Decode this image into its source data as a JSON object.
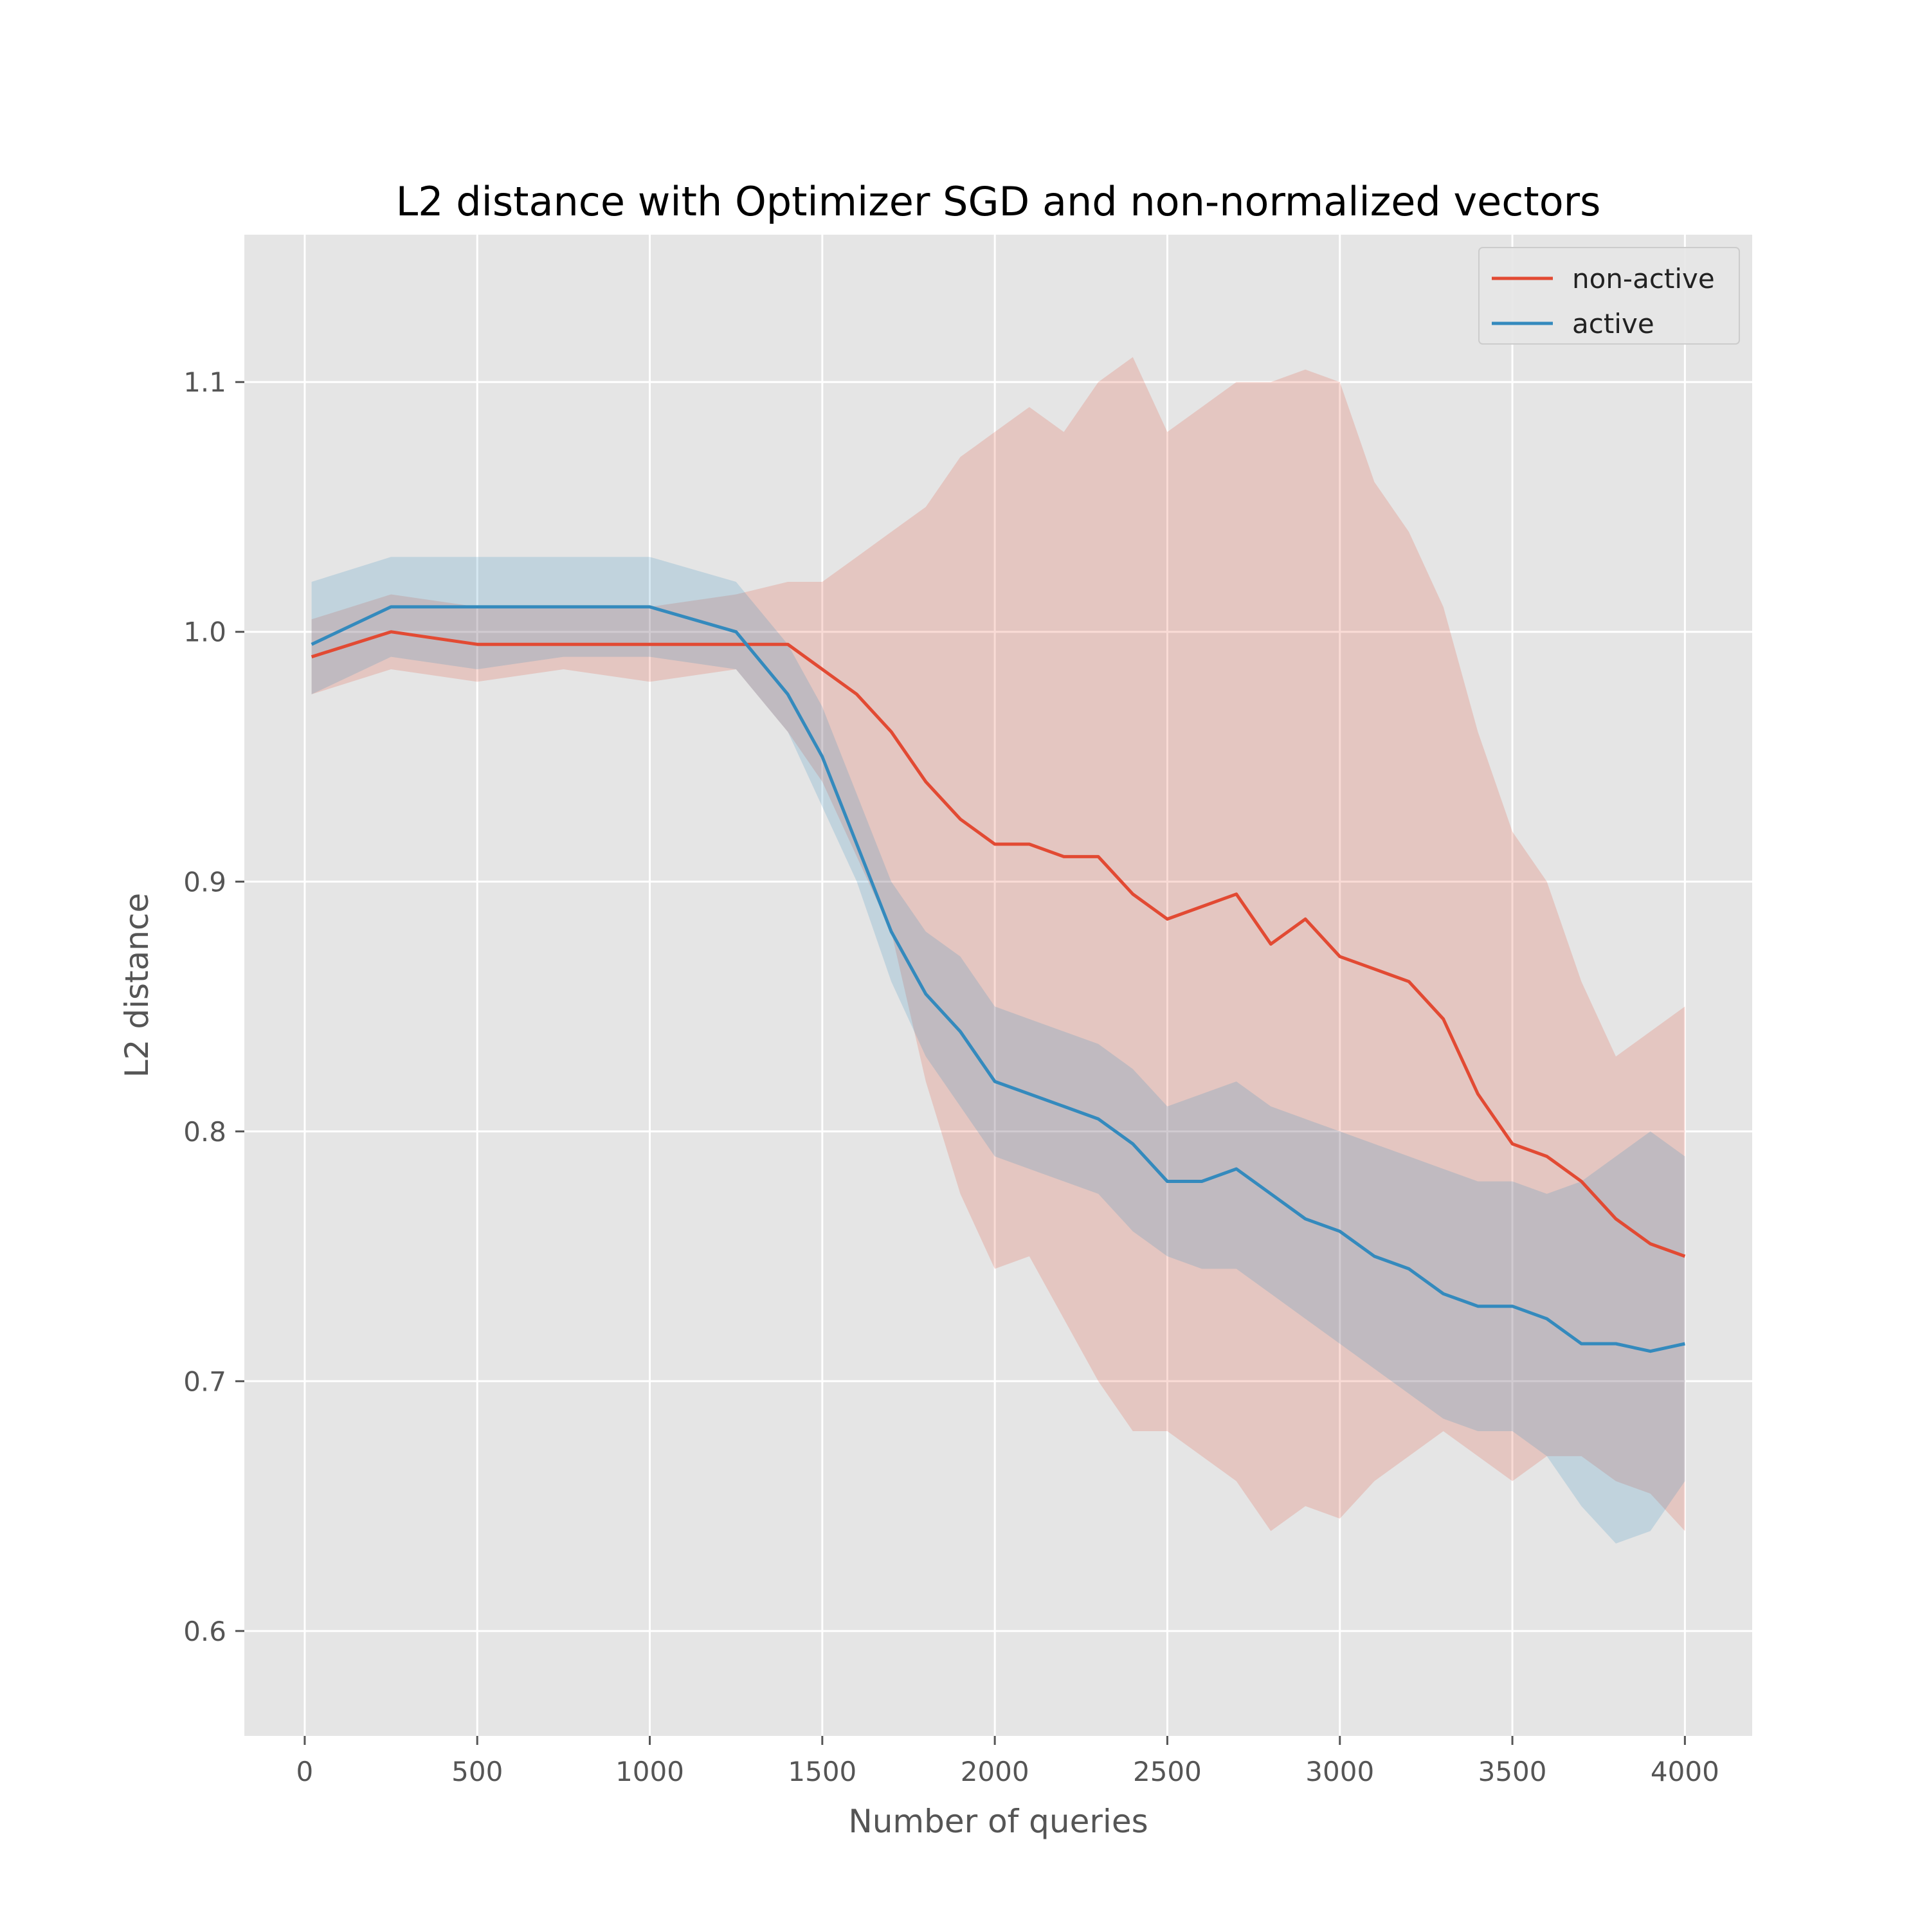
{
  "chart_data": {
    "type": "line",
    "title": "L2 distance with Optimizer SGD and non-normalized vectors",
    "xlabel": "Number of queries",
    "ylabel": "L2 distance",
    "xlim": [
      -175,
      4195
    ],
    "ylim": [
      0.558,
      1.159
    ],
    "xticks": [
      0,
      500,
      1000,
      1500,
      2000,
      2500,
      3000,
      3500,
      4000
    ],
    "xtick_labels": [
      "0",
      "500",
      "1000",
      "1500",
      "2000",
      "2500",
      "3000",
      "3500",
      "4000"
    ],
    "yticks": [
      0.6,
      0.7,
      0.8,
      0.9,
      1.0,
      1.1
    ],
    "ytick_labels": [
      "0.6",
      "0.7",
      "0.8",
      "0.9",
      "1.0",
      "1.1"
    ],
    "grid": true,
    "legend": {
      "placement": "top-right",
      "entries": [
        "non-active",
        "active"
      ]
    },
    "colors": {
      "background": "#e5e5e5",
      "grid": "#ffffff",
      "non_active": "#e24a33",
      "active": "#348abd"
    },
    "series": [
      {
        "name": "non-active",
        "color": "#e24a33",
        "x": [
          20,
          250,
          500,
          750,
          1000,
          1250,
          1400,
          1500,
          1600,
          1700,
          1800,
          1900,
          2000,
          2100,
          2200,
          2300,
          2400,
          2500,
          2600,
          2700,
          2800,
          2900,
          3000,
          3100,
          3200,
          3300,
          3400,
          3500,
          3600,
          3700,
          3800,
          3900,
          4000
        ],
        "y": [
          0.99,
          1.0,
          0.995,
          0.995,
          0.995,
          0.995,
          0.995,
          0.985,
          0.975,
          0.96,
          0.94,
          0.925,
          0.915,
          0.915,
          0.91,
          0.91,
          0.895,
          0.885,
          0.89,
          0.895,
          0.875,
          0.885,
          0.87,
          0.865,
          0.86,
          0.845,
          0.815,
          0.795,
          0.79,
          0.78,
          0.765,
          0.755,
          0.75
        ],
        "lower": [
          0.975,
          0.985,
          0.98,
          0.985,
          0.98,
          0.985,
          0.96,
          0.94,
          0.91,
          0.88,
          0.82,
          0.775,
          0.745,
          0.75,
          0.725,
          0.7,
          0.68,
          0.68,
          0.67,
          0.66,
          0.64,
          0.65,
          0.645,
          0.66,
          0.67,
          0.68,
          0.67,
          0.66,
          0.67,
          0.67,
          0.66,
          0.655,
          0.64
        ],
        "upper": [
          1.005,
          1.015,
          1.01,
          1.01,
          1.01,
          1.015,
          1.02,
          1.02,
          1.03,
          1.04,
          1.05,
          1.07,
          1.08,
          1.09,
          1.08,
          1.1,
          1.11,
          1.08,
          1.09,
          1.1,
          1.1,
          1.105,
          1.1,
          1.06,
          1.04,
          1.01,
          0.96,
          0.92,
          0.9,
          0.86,
          0.83,
          0.84,
          0.85
        ]
      },
      {
        "name": "active",
        "color": "#348abd",
        "x": [
          20,
          250,
          500,
          750,
          1000,
          1250,
          1400,
          1500,
          1600,
          1700,
          1800,
          1900,
          2000,
          2100,
          2200,
          2300,
          2400,
          2500,
          2600,
          2700,
          2800,
          2900,
          3000,
          3100,
          3200,
          3300,
          3400,
          3500,
          3600,
          3700,
          3800,
          3900,
          4000
        ],
        "y": [
          0.995,
          1.01,
          1.01,
          1.01,
          1.01,
          1.0,
          0.975,
          0.95,
          0.915,
          0.88,
          0.855,
          0.84,
          0.82,
          0.815,
          0.81,
          0.805,
          0.795,
          0.78,
          0.78,
          0.785,
          0.775,
          0.765,
          0.76,
          0.75,
          0.745,
          0.735,
          0.73,
          0.73,
          0.725,
          0.715,
          0.715,
          0.712,
          0.715
        ],
        "lower": [
          0.975,
          0.99,
          0.985,
          0.99,
          0.99,
          0.985,
          0.96,
          0.93,
          0.9,
          0.86,
          0.83,
          0.81,
          0.79,
          0.785,
          0.78,
          0.775,
          0.76,
          0.75,
          0.745,
          0.745,
          0.735,
          0.725,
          0.715,
          0.705,
          0.695,
          0.685,
          0.68,
          0.68,
          0.67,
          0.65,
          0.635,
          0.64,
          0.66
        ],
        "upper": [
          1.02,
          1.03,
          1.03,
          1.03,
          1.03,
          1.02,
          0.995,
          0.97,
          0.935,
          0.9,
          0.88,
          0.87,
          0.85,
          0.845,
          0.84,
          0.835,
          0.825,
          0.81,
          0.815,
          0.82,
          0.81,
          0.805,
          0.8,
          0.795,
          0.79,
          0.785,
          0.78,
          0.78,
          0.775,
          0.78,
          0.79,
          0.8,
          0.79
        ]
      }
    ]
  }
}
